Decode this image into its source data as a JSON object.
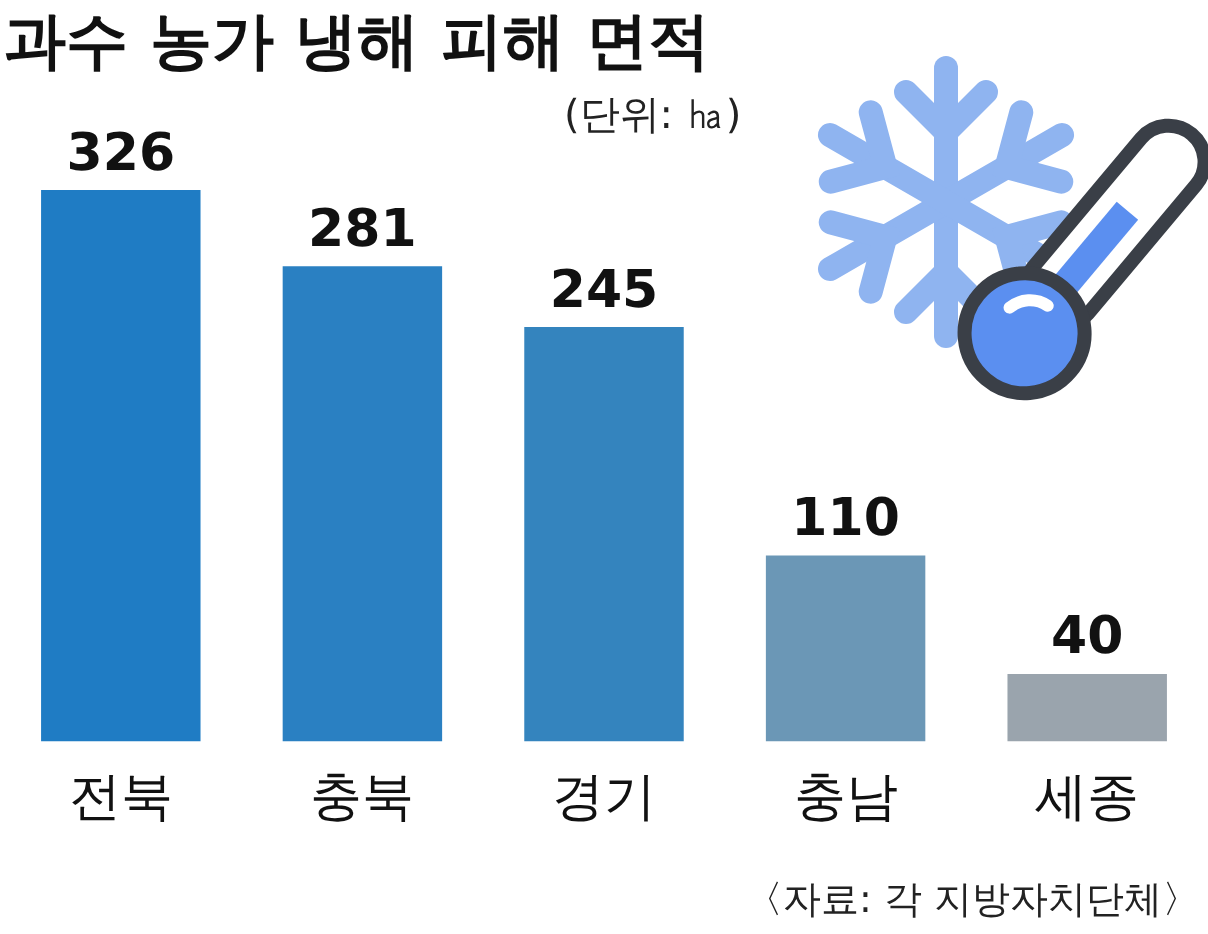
{
  "chart_data": {
    "type": "bar",
    "title": "과수 농가 냉해 피해 면적",
    "subtitle": "(단위: ㏊)",
    "categories": [
      "전북",
      "충북",
      "경기",
      "충남",
      "세종"
    ],
    "values": [
      326,
      281,
      245,
      110,
      40
    ],
    "colors": [
      "#1f7cc4",
      "#2a80c2",
      "#3484be",
      "#6b97b6",
      "#9aa4ad"
    ],
    "data_labels": true,
    "annotations": [
      "〈자료: 각 지방자치단체〉"
    ]
  }
}
